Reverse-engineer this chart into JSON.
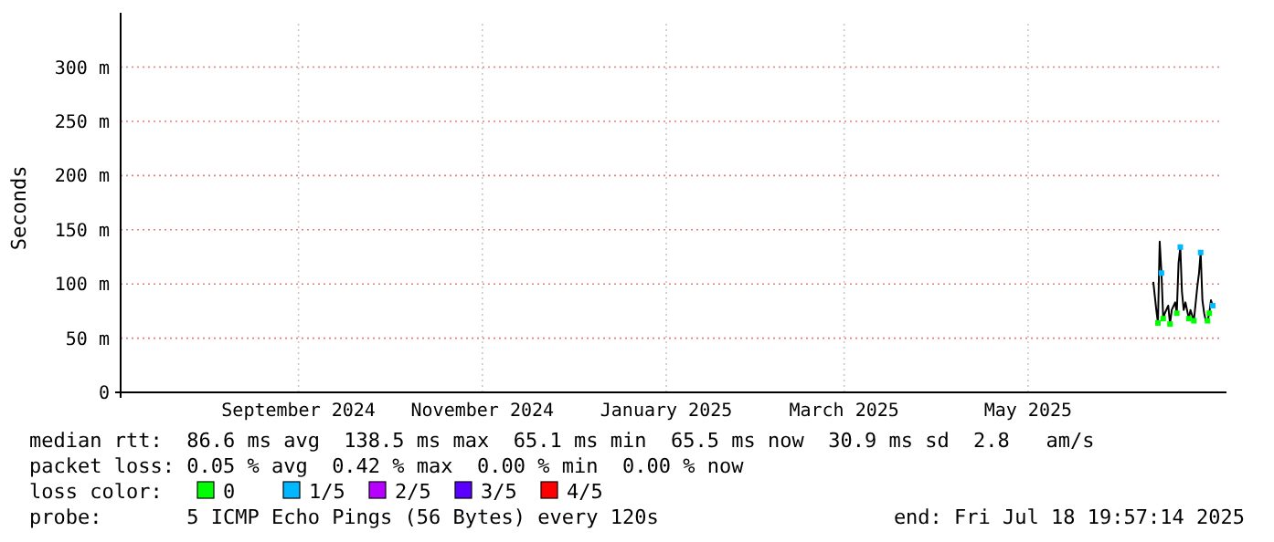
{
  "chart_data": {
    "type": "line",
    "ylabel": "Seconds",
    "legend_title": "loss color:",
    "legend": "bottom",
    "grid": true,
    "xlim": [
      "2024-07-18",
      "2025-07-18"
    ],
    "xticks": [
      {
        "value": "2024-09-15",
        "label": "September 2024"
      },
      {
        "value": "2024-11-15",
        "label": "November 2024"
      },
      {
        "value": "2025-01-15",
        "label": "January 2025"
      },
      {
        "value": "2025-03-15",
        "label": "March 2025"
      },
      {
        "value": "2025-05-15",
        "label": "May 2025"
      }
    ],
    "ylim": [
      0,
      340
    ],
    "yticks": [
      0,
      {
        "value": 50,
        "label": "50 m"
      },
      {
        "value": 100,
        "label": "100 m"
      },
      {
        "value": 150,
        "label": "150 m"
      },
      {
        "value": 200,
        "label": "200 m"
      },
      {
        "value": 250,
        "label": "250 m"
      },
      {
        "value": 300,
        "label": "300 m"
      }
    ],
    "series": [
      {
        "color": "#000000",
        "x": [
          "2025-06-25T13:00",
          "2025-06-26T13:00",
          "2025-06-27T02:00",
          "2025-06-27T16:00",
          "2025-06-28T06:00",
          "2025-06-28T20:00",
          "2025-06-29T09:00",
          "2025-06-30T12:00",
          "2025-07-01T02:00",
          "2025-07-01T16:00",
          "2025-07-02T19:00",
          "2025-07-03T08:00",
          "2025-07-03T22:00",
          "2025-07-04T12:00",
          "2025-07-05T01:00",
          "2025-07-05T15:00",
          "2025-07-06T05:00",
          "2025-07-07T08:00",
          "2025-07-07T21:00",
          "2025-07-09T00:00",
          "2025-07-10T03:00",
          "2025-07-10T17:00",
          "2025-07-11T06:00",
          "2025-07-11T20:00",
          "2025-07-12T10:00",
          "2025-07-12T23:00",
          "2025-07-13T13:00",
          "2025-07-14T03:00",
          "2025-07-14T16:00",
          "2025-07-15T06:00"
        ],
        "values": [
          102,
          76,
          64,
          139,
          110,
          68,
          73,
          80,
          63,
          76,
          83,
          73,
          119,
          134,
          93,
          76,
          83,
          68,
          76,
          66,
          97,
          110,
          129,
          85,
          73,
          66,
          66,
          73,
          85,
          80
        ]
      },
      {
        "type": "scatter",
        "name": "0",
        "color": "#00ff00",
        "x": [
          "2025-06-27T02:00",
          "2025-06-28T20:00",
          "2025-07-01T02:00",
          "2025-07-03T08:00",
          "2025-07-07T08:00",
          "2025-07-09T00:00",
          "2025-07-13T13:00",
          "2025-07-14T03:00"
        ],
        "values": [
          64,
          68,
          63,
          73,
          68,
          66,
          66,
          73
        ]
      },
      {
        "type": "scatter",
        "name": "1/5",
        "color": "#00b8ff",
        "x": [
          "2025-06-28T06:00",
          "2025-07-04T12:00",
          "2025-07-11T06:00",
          "2025-07-15T06:00"
        ],
        "values": [
          110,
          134,
          129,
          80
        ]
      },
      {
        "type": "scatter",
        "name": "2/5",
        "color": "#b700ff"
      },
      {
        "type": "scatter",
        "name": "3/5",
        "color": "#5b00ff"
      },
      {
        "type": "scatter",
        "name": "4/5",
        "color": "#ff0000"
      }
    ],
    "annotations": [
      "median rtt:  86.6 ms avg  138.5 ms max  65.1 ms min  65.5 ms now  30.9 ms sd  2.8   am/s",
      "packet loss: 0.05 % avg  0.42 % max  0.00 % min  0.00 % now",
      "probe:       5 ICMP Echo Pings (56 Bytes) every 120s",
      "end: Fri Jul 18 19:57:14 2025"
    ]
  }
}
